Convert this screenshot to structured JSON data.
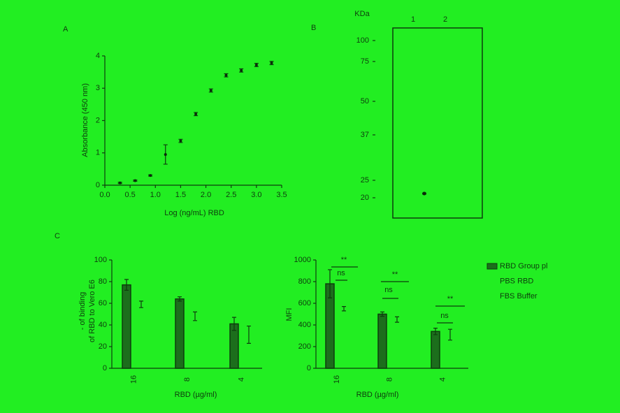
{
  "chart_data": [
    {
      "type": "scatter",
      "panel": "A",
      "xlabel": "Log (ng/mL)  RBD",
      "ylabel": "Absorbance (450 nm)",
      "x": [
        0.3,
        0.6,
        0.9,
        1.2,
        1.5,
        1.8,
        2.1,
        2.4,
        2.7,
        3.0,
        3.3
      ],
      "values": [
        0.07,
        0.14,
        0.3,
        0.95,
        1.37,
        2.2,
        2.93,
        3.4,
        3.55,
        3.72,
        3.78
      ],
      "errors": [
        0.02,
        0.02,
        0.02,
        0.3,
        0.05,
        0.05,
        0.05,
        0.05,
        0.05,
        0.05,
        0.05
      ],
      "color": "#0a2a0a",
      "xlim": [
        0,
        3.5
      ],
      "ylim": [
        0,
        4
      ],
      "xticks": [
        {
          "value": 0,
          "label": "0.0"
        },
        0.5,
        {
          "value": 1,
          "label": "1.0"
        },
        1.5,
        {
          "value": 2,
          "label": "2.0"
        },
        2.5,
        {
          "value": 3,
          "label": "3.0"
        },
        3.5
      ],
      "yticks": [
        0,
        1,
        2,
        3,
        4
      ]
    },
    {
      "type": "bar",
      "panel": "C",
      "xlabel": "RBD (µg/ml)",
      "ylabel": [
        "- of binding",
        "of RBD to Vero E6"
      ],
      "categories": [
        "16",
        "8",
        "4"
      ],
      "series": [
        {
          "color": "#1c6e1c",
          "values": [
            77,
            64,
            41
          ],
          "errors": [
            5,
            2,
            6
          ]
        },
        {
          "color": "#0a2a0a",
          "values": [
            59,
            48,
            31
          ],
          "errors": [
            3,
            4,
            8
          ]
        }
      ],
      "ylim": [
        0,
        100
      ],
      "yticks": [
        0,
        20,
        40,
        60,
        80,
        100
      ]
    },
    {
      "type": "bar",
      "xlabel": "RBD (µg/ml)",
      "ylabel": "MFI",
      "categories": [
        "16",
        "8",
        "4"
      ],
      "series": [
        {
          "color": "#1c6e1c",
          "values": [
            780,
            500,
            340
          ],
          "errors": [
            130,
            20,
            30
          ]
        },
        {
          "color": "#0a2a0a",
          "values": [
            550,
            450,
            310
          ],
          "errors": [
            20,
            25,
            50
          ]
        }
      ],
      "ylim": [
        0,
        1000
      ],
      "yticks": [
        0,
        200,
        400,
        600,
        800,
        1000
      ],
      "annotations": [
        "**",
        "ns",
        "**",
        "ns",
        "**",
        "ns"
      ],
      "legend": [
        "RBD Group pl",
        "PBS RBD",
        "FBS Buffer"
      ]
    }
  ],
  "gel": {
    "panel": "B",
    "unit": "KDa",
    "lanes": [
      "1",
      "2"
    ],
    "markers": [
      "100",
      "75",
      "50",
      "37",
      "25",
      "20"
    ]
  }
}
